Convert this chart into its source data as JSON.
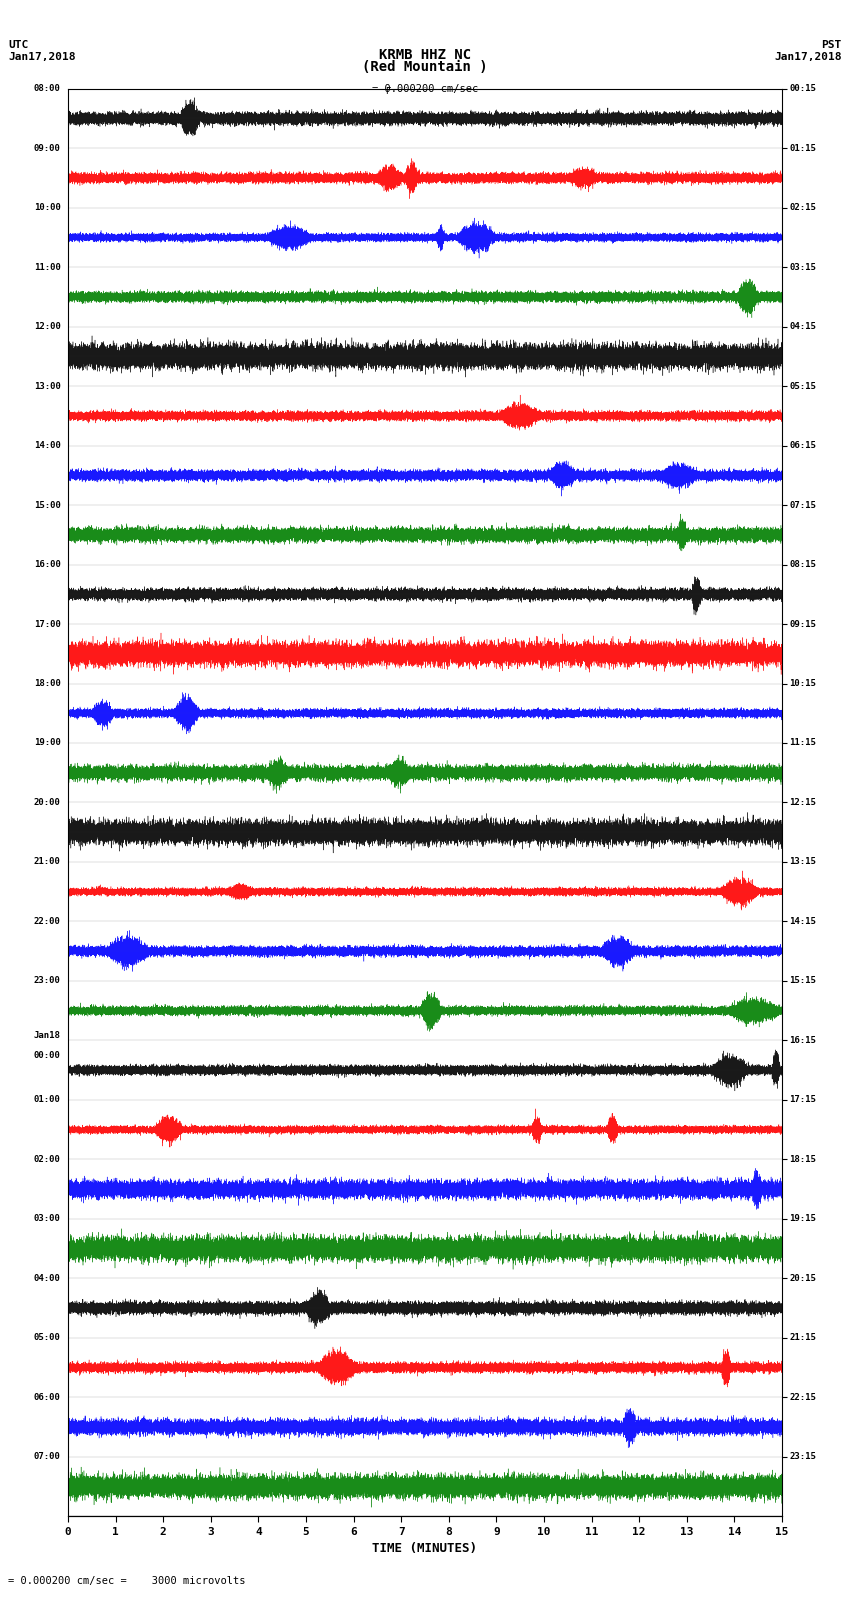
{
  "title_line1": "KRMB HHZ NC",
  "title_line2": "(Red Mountain )",
  "scale_label": "= 0.000200 cm/sec",
  "left_label": "UTC\nJan17,2018",
  "right_label": "PST\nJan17,2018",
  "bottom_label": "TIME (MINUTES)",
  "scale_note": "= 0.000200 cm/sec =    3000 microvolts",
  "xlabel_ticks": [
    0,
    1,
    2,
    3,
    4,
    5,
    6,
    7,
    8,
    9,
    10,
    11,
    12,
    13,
    14,
    15
  ],
  "utc_times": [
    "08:00",
    "09:00",
    "10:00",
    "11:00",
    "12:00",
    "13:00",
    "14:00",
    "15:00",
    "16:00",
    "17:00",
    "18:00",
    "19:00",
    "20:00",
    "21:00",
    "22:00",
    "23:00",
    "Jan18\n00:00",
    "01:00",
    "02:00",
    "03:00",
    "04:00",
    "05:00",
    "06:00",
    "07:00"
  ],
  "pst_times": [
    "00:15",
    "01:15",
    "02:15",
    "03:15",
    "04:15",
    "05:15",
    "06:15",
    "07:15",
    "08:15",
    "09:15",
    "10:15",
    "11:15",
    "12:15",
    "13:15",
    "14:15",
    "15:15",
    "16:15",
    "17:15",
    "18:15",
    "19:15",
    "20:15",
    "21:15",
    "22:15",
    "23:15"
  ],
  "num_rows": 24,
  "minutes_per_row": 15,
  "sample_rate": 100,
  "colors_cycle": [
    "black",
    "red",
    "blue",
    "green"
  ],
  "bg_color": "white",
  "trace_amplitude": 0.35,
  "noise_seed": 42
}
